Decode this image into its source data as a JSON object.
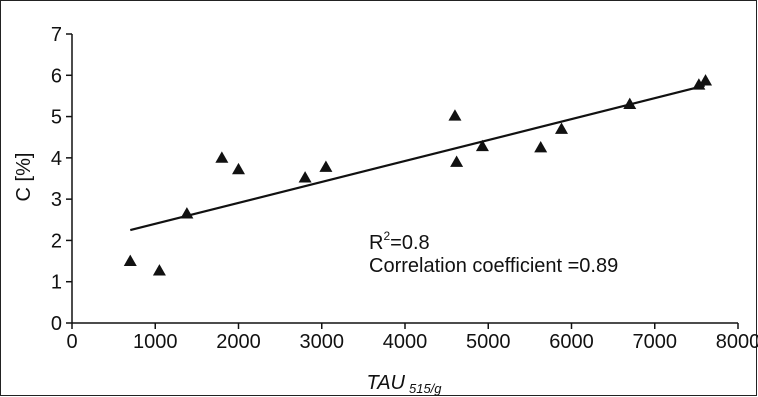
{
  "chart_data": {
    "type": "scatter",
    "xlabel": "TAU",
    "xlabel_subscript": "515/g",
    "ylabel": "C [%]",
    "xlim": [
      0,
      8000
    ],
    "ylim": [
      0,
      7
    ],
    "xticks": [
      0,
      1000,
      2000,
      3000,
      4000,
      5000,
      6000,
      7000,
      8000
    ],
    "yticks": [
      0,
      1,
      2,
      3,
      4,
      5,
      6,
      7
    ],
    "grid": false,
    "marker": "triangle",
    "marker_color": "#111111",
    "points": [
      {
        "x": 700,
        "y": 1.5
      },
      {
        "x": 1050,
        "y": 1.27
      },
      {
        "x": 1380,
        "y": 2.65
      },
      {
        "x": 1800,
        "y": 4.0
      },
      {
        "x": 2000,
        "y": 3.72
      },
      {
        "x": 2800,
        "y": 3.52
      },
      {
        "x": 3050,
        "y": 3.78
      },
      {
        "x": 4600,
        "y": 5.02
      },
      {
        "x": 4620,
        "y": 3.9
      },
      {
        "x": 4930,
        "y": 4.28
      },
      {
        "x": 5630,
        "y": 4.25
      },
      {
        "x": 5880,
        "y": 4.7
      },
      {
        "x": 6700,
        "y": 5.3
      },
      {
        "x": 7530,
        "y": 5.77
      },
      {
        "x": 7610,
        "y": 5.87
      }
    ],
    "trendline": {
      "x": [
        700,
        7600
      ],
      "y": [
        2.25,
        5.75
      ]
    },
    "annotations": {
      "r2_prefix": "R",
      "r2_sup": "2",
      "r2_value": "=0.8",
      "correlation": "Correlation coefficient =0.89"
    }
  }
}
